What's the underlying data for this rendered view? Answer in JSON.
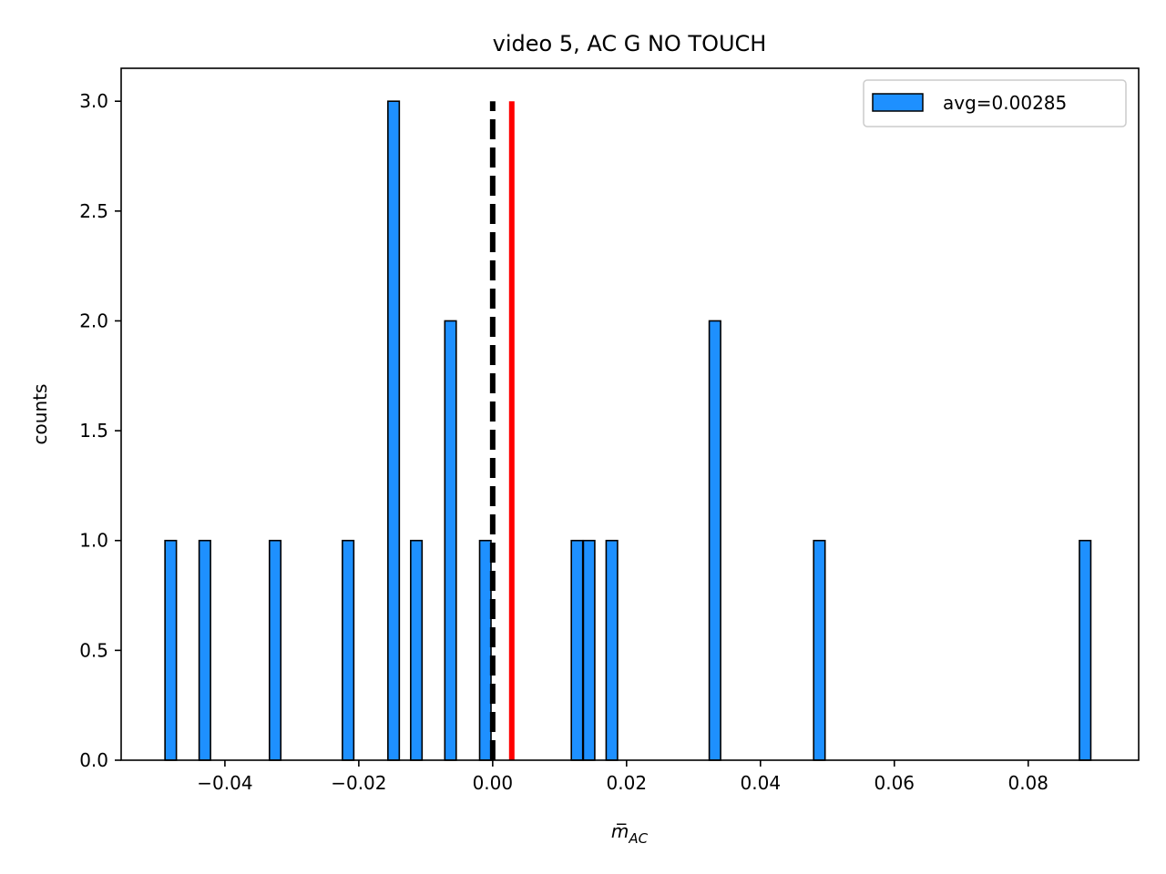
{
  "chart_data": {
    "type": "bar",
    "title": "video 5, AC G NO TOUCH",
    "xlabel": "m̅",
    "xlabel_subscript": "AC",
    "ylabel": "counts",
    "xlim": [
      -0.0555,
      0.0965
    ],
    "ylim": [
      0,
      3.15
    ],
    "x_ticks": [
      -0.04,
      -0.02,
      0.0,
      0.02,
      0.04,
      0.06,
      0.08
    ],
    "x_tick_labels": [
      "−0.04",
      "−0.02",
      "0.00",
      "0.02",
      "0.04",
      "0.06",
      "0.08"
    ],
    "y_ticks": [
      0.0,
      0.5,
      1.0,
      1.5,
      2.0,
      2.5,
      3.0
    ],
    "y_tick_labels": [
      "0.0",
      "0.5",
      "1.0",
      "1.5",
      "2.0",
      "2.5",
      "3.0"
    ],
    "bin_width": 0.0017,
    "bars": [
      {
        "x": -0.0481,
        "count": 1
      },
      {
        "x": -0.043,
        "count": 1
      },
      {
        "x": -0.0325,
        "count": 1
      },
      {
        "x": -0.0216,
        "count": 1
      },
      {
        "x": -0.0148,
        "count": 3
      },
      {
        "x": -0.0114,
        "count": 1
      },
      {
        "x": -0.0063,
        "count": 2
      },
      {
        "x": -0.0011,
        "count": 1
      },
      {
        "x": 0.0126,
        "count": 1
      },
      {
        "x": 0.0144,
        "count": 1
      },
      {
        "x": 0.0178,
        "count": 1
      },
      {
        "x": 0.0332,
        "count": 2
      },
      {
        "x": 0.0488,
        "count": 1
      },
      {
        "x": 0.0885,
        "count": 1
      }
    ],
    "bar_color": "#1e90ff",
    "bar_edge_color": "#000000",
    "reference_lines": [
      {
        "x": 0.0,
        "style": "dashed",
        "color": "#000000",
        "ymax": 3.0
      },
      {
        "x": 0.00285,
        "style": "solid",
        "color": "#ff0000",
        "ymax": 3.0
      }
    ],
    "legend": {
      "label": "avg=0.00285",
      "position": "upper right"
    },
    "grid": false
  }
}
